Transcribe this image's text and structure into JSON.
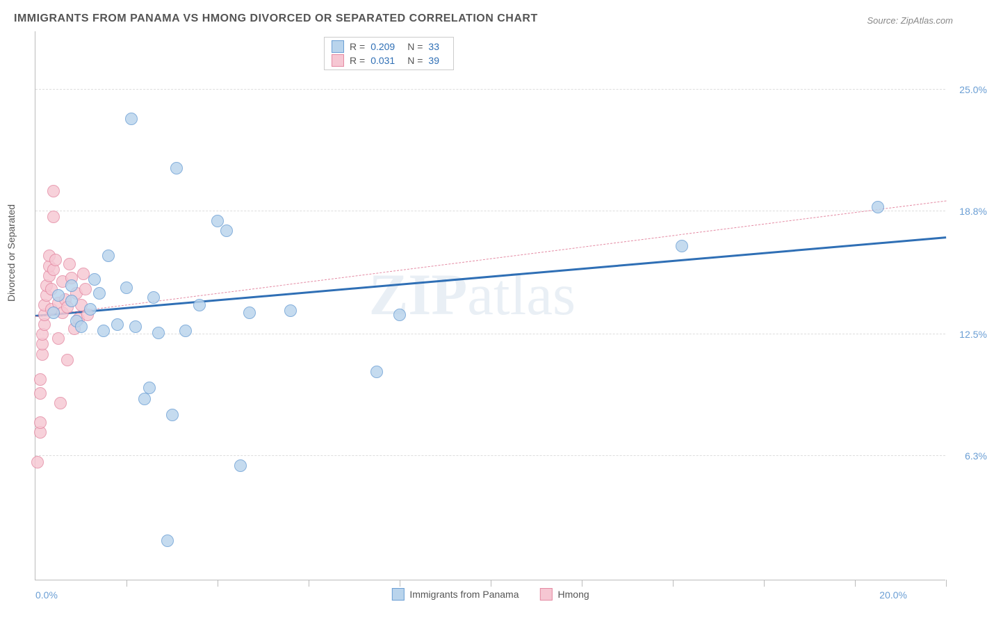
{
  "title": "IMMIGRANTS FROM PANAMA VS HMONG DIVORCED OR SEPARATED CORRELATION CHART",
  "source": "Source: ZipAtlas.com",
  "watermark_bold": "ZIP",
  "watermark_rest": "atlas",
  "chart": {
    "type": "scatter",
    "y_axis_title": "Divorced or Separated",
    "xlim": [
      0,
      20
    ],
    "ylim": [
      0,
      28
    ],
    "x_start_label": "0.0%",
    "x_end_label": "20.0%",
    "y_grid": [
      {
        "v": 6.3,
        "label": "6.3%"
      },
      {
        "v": 12.5,
        "label": "12.5%"
      },
      {
        "v": 18.8,
        "label": "18.8%"
      },
      {
        "v": 25.0,
        "label": "25.0%"
      }
    ],
    "x_ticks": [
      2,
      4,
      6,
      8,
      10,
      12,
      14,
      16,
      18,
      20
    ],
    "background_color": "#ffffff",
    "grid_color": "#dddddd",
    "axis_color": "#bbbbbb",
    "label_color": "#6a9ed4",
    "marker_radius": 9,
    "series": [
      {
        "name": "Immigrants from Panama",
        "fill": "#b9d4ec",
        "stroke": "#6a9ed4",
        "trend": {
          "x1": 0,
          "y1": 13.4,
          "x2": 20,
          "y2": 17.4,
          "color": "#2f6fb5",
          "width": 3,
          "dash": false
        },
        "stats": {
          "R": "0.209",
          "N": "33"
        },
        "points": [
          [
            0.4,
            13.6
          ],
          [
            0.5,
            14.5
          ],
          [
            0.8,
            14.2
          ],
          [
            0.8,
            15.0
          ],
          [
            0.9,
            13.2
          ],
          [
            1.0,
            12.9
          ],
          [
            1.2,
            13.8
          ],
          [
            1.3,
            15.3
          ],
          [
            1.4,
            14.6
          ],
          [
            1.5,
            12.7
          ],
          [
            1.6,
            16.5
          ],
          [
            1.8,
            13.0
          ],
          [
            2.0,
            14.9
          ],
          [
            2.1,
            23.5
          ],
          [
            2.2,
            12.9
          ],
          [
            2.4,
            9.2
          ],
          [
            2.5,
            9.8
          ],
          [
            2.6,
            14.4
          ],
          [
            2.7,
            12.6
          ],
          [
            2.9,
            2.0
          ],
          [
            3.0,
            8.4
          ],
          [
            3.1,
            21.0
          ],
          [
            3.3,
            12.7
          ],
          [
            3.6,
            14.0
          ],
          [
            4.0,
            18.3
          ],
          [
            4.2,
            17.8
          ],
          [
            4.5,
            5.8
          ],
          [
            4.7,
            13.6
          ],
          [
            5.6,
            13.7
          ],
          [
            7.5,
            10.6
          ],
          [
            8.0,
            13.5
          ],
          [
            14.2,
            17.0
          ],
          [
            18.5,
            19.0
          ]
        ]
      },
      {
        "name": "Hmong",
        "fill": "#f6c7d3",
        "stroke": "#e48aa3",
        "trend": {
          "x1": 0,
          "y1": 13.4,
          "x2": 20,
          "y2": 19.3,
          "color": "#e48aa3",
          "width": 1.3,
          "dash": true
        },
        "stats": {
          "R": "0.031",
          "N": "39"
        },
        "points": [
          [
            0.05,
            6.0
          ],
          [
            0.1,
            7.5
          ],
          [
            0.1,
            8.0
          ],
          [
            0.1,
            9.5
          ],
          [
            0.1,
            10.2
          ],
          [
            0.15,
            11.5
          ],
          [
            0.15,
            12.0
          ],
          [
            0.15,
            12.5
          ],
          [
            0.2,
            13.0
          ],
          [
            0.2,
            13.5
          ],
          [
            0.2,
            14.0
          ],
          [
            0.25,
            14.5
          ],
          [
            0.25,
            15.0
          ],
          [
            0.3,
            15.5
          ],
          [
            0.3,
            16.0
          ],
          [
            0.3,
            16.5
          ],
          [
            0.35,
            13.8
          ],
          [
            0.35,
            14.8
          ],
          [
            0.4,
            18.5
          ],
          [
            0.4,
            19.8
          ],
          [
            0.4,
            15.8
          ],
          [
            0.45,
            16.3
          ],
          [
            0.5,
            12.3
          ],
          [
            0.5,
            14.1
          ],
          [
            0.55,
            9.0
          ],
          [
            0.6,
            13.6
          ],
          [
            0.6,
            15.2
          ],
          [
            0.65,
            14.3
          ],
          [
            0.7,
            11.2
          ],
          [
            0.7,
            13.9
          ],
          [
            0.75,
            16.1
          ],
          [
            0.8,
            15.4
          ],
          [
            0.85,
            12.8
          ],
          [
            0.9,
            14.6
          ],
          [
            0.95,
            13.3
          ],
          [
            1.0,
            14.0
          ],
          [
            1.05,
            15.6
          ],
          [
            1.1,
            14.8
          ],
          [
            1.15,
            13.5
          ]
        ]
      }
    ]
  }
}
